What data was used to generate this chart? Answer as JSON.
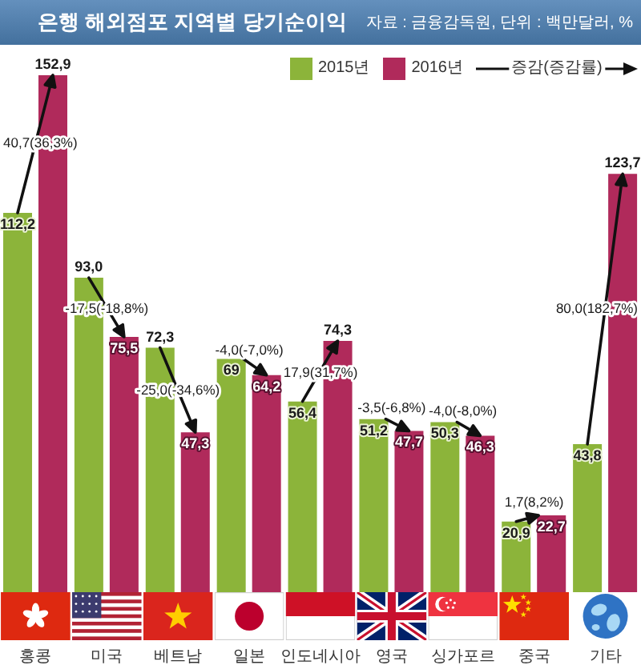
{
  "chart_data": {
    "type": "bar",
    "title": "은행 해외점포 지역별 당기순이익",
    "categories": [
      "홍콩",
      "미국",
      "베트남",
      "일본",
      "인도네시아",
      "영국",
      "싱가포르",
      "중국",
      "기타"
    ],
    "series": [
      {
        "name": "2015년",
        "color": "#8cb43a",
        "values": [
          112.2,
          93.0,
          72.3,
          69,
          56.4,
          51.2,
          50.3,
          20.9,
          43.8
        ],
        "value_labels": [
          "112,2",
          "93,0",
          "72,3",
          "69",
          "56,4",
          "51,2",
          "50,3",
          "20,9",
          "43,8"
        ]
      },
      {
        "name": "2016년",
        "color": "#b02a5b",
        "values": [
          152.9,
          75.5,
          47.3,
          64.2,
          74.3,
          47.7,
          46.3,
          22.7,
          123.7
        ],
        "value_labels": [
          "152,9",
          "75,5",
          "47,3",
          "64,2",
          "74,3",
          "47,7",
          "46,3",
          "22,7",
          "123,7"
        ]
      }
    ],
    "legend": "top right",
    "tick_labels": "x",
    "annotations": [
      "자료 : 금융감독원, 단위 : 백만달러, %",
      "증감(증감률)",
      {
        "text": "40,7(36,3%)",
        "x": "홍콩",
        "y": 133
      },
      {
        "text": "-17,5(-18,8%)",
        "x": "미국",
        "y": 84
      },
      {
        "text": "-25,0(-34,6%)",
        "x": "베트남",
        "y": 60
      },
      {
        "text": "-4,0(-7,0%)",
        "x": "일본",
        "y": 67
      },
      {
        "text": "17,9(31,7%)",
        "x": "인도네시아",
        "y": 65
      },
      {
        "text": "-3,5(-6,8%)",
        "x": "영국",
        "y": 50
      },
      {
        "text": "-4,0(-8,0%)",
        "x": "싱가포르",
        "y": 49
      },
      {
        "text": "1,7(8,2%)",
        "x": "중국",
        "y": 22
      },
      {
        "text": "80,0(182,7%)",
        "x": "기타",
        "y": 84
      }
    ]
  }
}
